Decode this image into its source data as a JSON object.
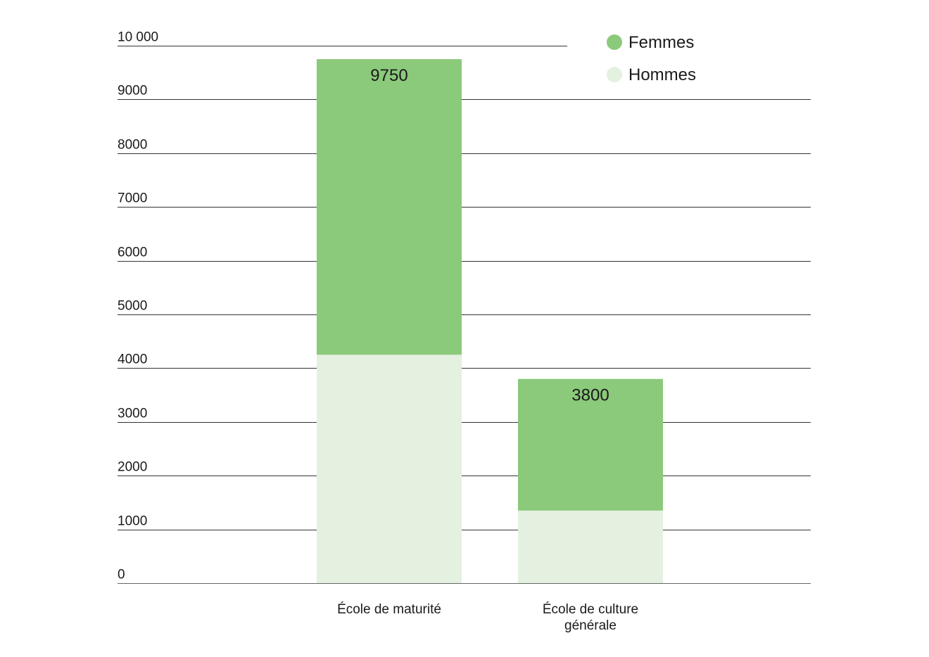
{
  "chart_data": {
    "type": "bar",
    "stacked": true,
    "categories": [
      "École de maturité",
      "École de culture\ngénérale"
    ],
    "series": [
      {
        "name": "Hommes",
        "values": [
          4250,
          1350
        ],
        "color": "#e4f0e0"
      },
      {
        "name": "Femmes",
        "values": [
          5500,
          2450
        ],
        "color": "#8bc97b"
      }
    ],
    "totals": [
      "9750",
      "3800"
    ],
    "y_ticks": [
      "0",
      "1000",
      "2000",
      "3000",
      "4000",
      "5000",
      "6000",
      "7000",
      "8000",
      "9000",
      "10 000"
    ],
    "ylim": [
      0,
      10000
    ],
    "grid": true,
    "legend": {
      "position": "top-right",
      "order": [
        "Femmes",
        "Hommes"
      ]
    },
    "title": "",
    "xlabel": "",
    "ylabel": ""
  }
}
